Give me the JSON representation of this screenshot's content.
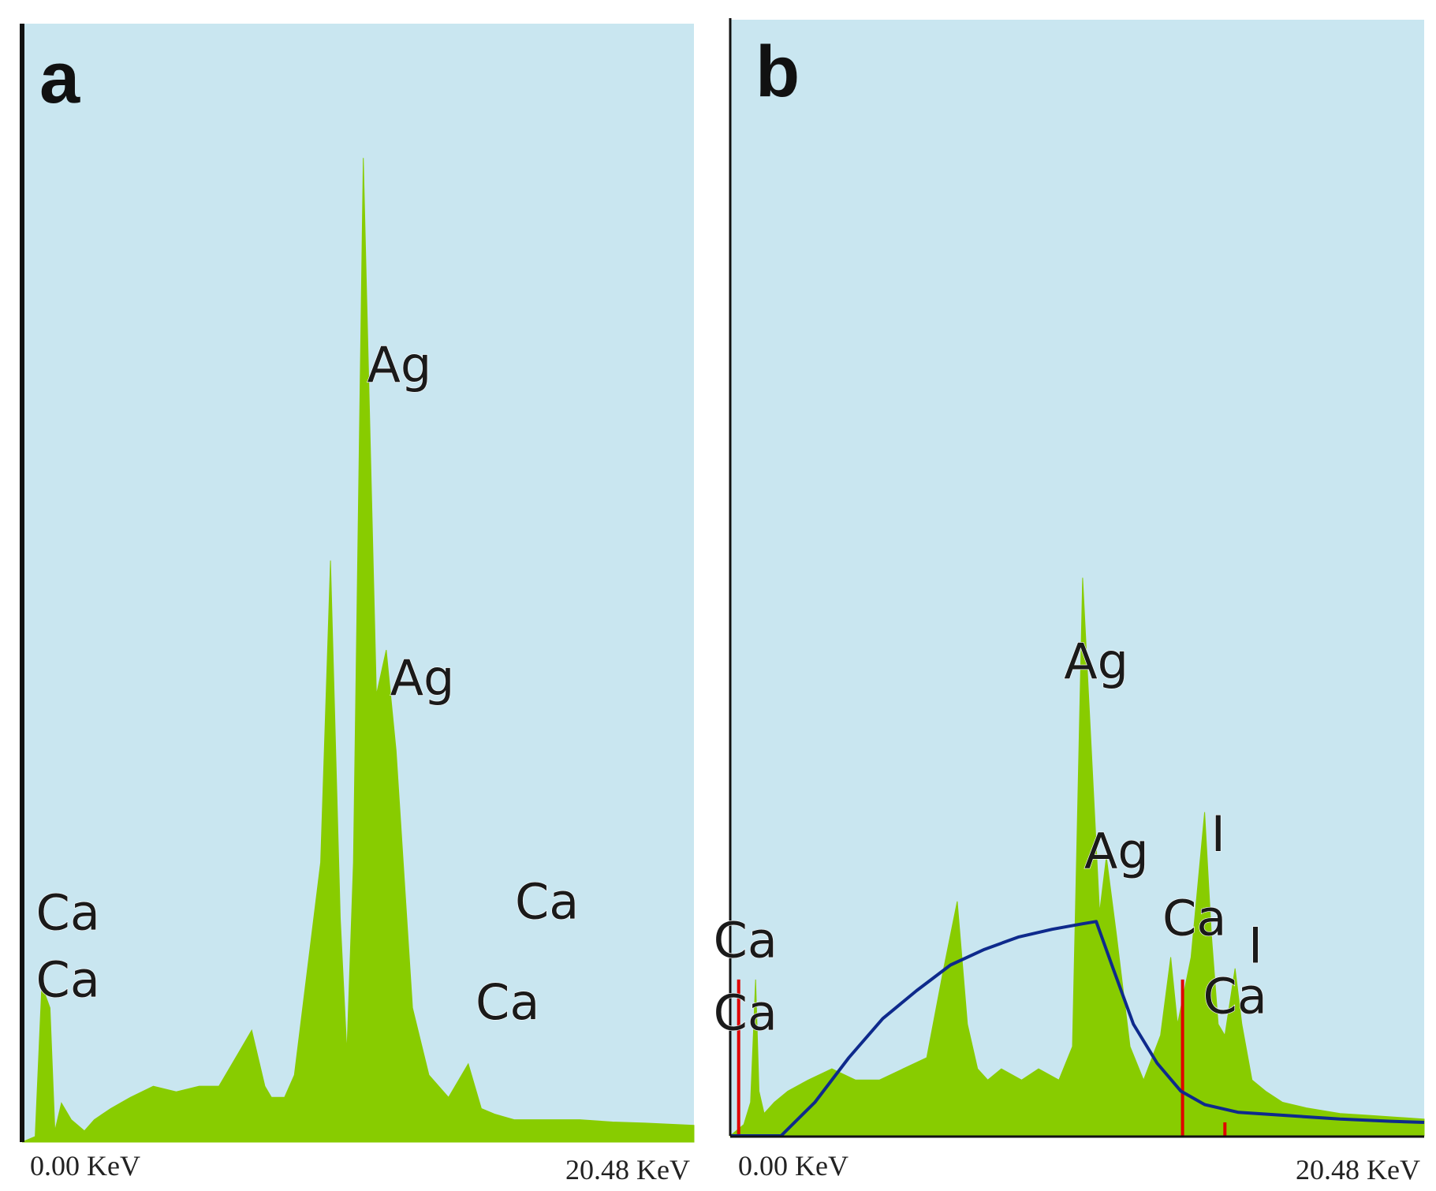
{
  "chart_data": [
    {
      "type": "area",
      "panel_label": "a",
      "x_unit": "KeV",
      "xlim": [
        0.0,
        20.48
      ],
      "ylim": [
        0,
        100
      ],
      "x_tick_labels": [
        "0.00 KeV",
        "20.48 KeV"
      ],
      "grid": false,
      "colors": {
        "background": "#c9e6f0",
        "fill": "#88cc00"
      },
      "x": [
        0.0,
        0.4,
        0.6,
        0.85,
        1.0,
        1.2,
        1.5,
        1.9,
        2.2,
        2.7,
        3.3,
        4.0,
        4.7,
        5.4,
        6.0,
        6.6,
        7.0,
        7.4,
        7.6,
        7.8,
        8.0,
        8.3,
        9.1,
        9.4,
        9.7,
        9.9,
        10.1,
        10.4,
        10.8,
        11.1,
        11.4,
        11.9,
        12.4,
        13.0,
        13.6,
        14.0,
        14.4,
        15.0,
        16.0,
        17.0,
        18.0,
        19.0,
        20.48
      ],
      "values": [
        0,
        0.5,
        14,
        12,
        1,
        3.5,
        2,
        1,
        2,
        3,
        4,
        5,
        4.5,
        5,
        5,
        8,
        10,
        5,
        4,
        4,
        4,
        6,
        25,
        52,
        20,
        8,
        25,
        88,
        40,
        44,
        35,
        12,
        6,
        4,
        7,
        3,
        2.5,
        2,
        2,
        2,
        1.8,
        1.7,
        1.5
      ],
      "annotations": [
        {
          "text": "Ag",
          "x": 11.5,
          "y": 68
        },
        {
          "text": "Ag",
          "x": 12.2,
          "y": 40
        },
        {
          "text": "Ca",
          "x": 1.4,
          "y": 19
        },
        {
          "text": "Ca",
          "x": 1.4,
          "y": 13
        },
        {
          "text": "Ca",
          "x": 16.0,
          "y": 20
        },
        {
          "text": "Ca",
          "x": 14.8,
          "y": 11
        }
      ]
    },
    {
      "type": "area",
      "panel_label": "b",
      "x_unit": "KeV",
      "xlim": [
        0.0,
        20.48
      ],
      "ylim": [
        0,
        100
      ],
      "x_tick_labels": [
        "0.00 KeV",
        "20.48 KeV"
      ],
      "grid": false,
      "colors": {
        "background": "#c9e6f0",
        "fill": "#88cc00",
        "curve": "#0e2a8c",
        "markers": "#e00000"
      },
      "x": [
        0.0,
        0.4,
        0.6,
        0.75,
        0.85,
        1.0,
        1.3,
        1.7,
        2.3,
        3.0,
        3.7,
        4.4,
        5.1,
        5.8,
        6.3,
        6.7,
        7.0,
        7.3,
        7.6,
        8.0,
        8.6,
        9.1,
        9.7,
        10.1,
        10.4,
        10.9,
        11.1,
        11.4,
        11.8,
        12.2,
        12.7,
        13.0,
        13.2,
        13.6,
        14.0,
        14.2,
        14.4,
        14.6,
        14.9,
        15.1,
        15.4,
        15.8,
        16.3,
        17.0,
        18.0,
        19.0,
        20.48
      ],
      "values": [
        0,
        1,
        3,
        14,
        4,
        2,
        3,
        4,
        5,
        6,
        5,
        5,
        6,
        7,
        15,
        21,
        10,
        6,
        5,
        6,
        5,
        6,
        5,
        8,
        50,
        20,
        25,
        18,
        8,
        5,
        9,
        16,
        10,
        16,
        29,
        18,
        10,
        9,
        15,
        10,
        5,
        4,
        3,
        2.5,
        2,
        1.8,
        1.5
      ],
      "background_curve": {
        "x": [
          0.0,
          1.5,
          2.5,
          3.5,
          4.5,
          5.5,
          6.5,
          7.5,
          8.5,
          9.5,
          10.4,
          10.8,
          11.3,
          11.9,
          12.6,
          13.3,
          14.0,
          15.0,
          16.5,
          18.0,
          19.5,
          20.48
        ],
        "values": [
          0,
          0,
          3,
          7,
          10.5,
          13,
          15.3,
          16.7,
          17.8,
          18.5,
          19.0,
          19.2,
          15,
          10,
          6.5,
          4,
          2.8,
          2.1,
          1.8,
          1.5,
          1.3,
          1.2
        ]
      },
      "marker_lines": [
        {
          "x": 0.25,
          "y": 14
        },
        {
          "x": 13.35,
          "y": 14
        },
        {
          "x": 14.6,
          "y": 1.2
        }
      ],
      "annotations": [
        {
          "text": "Ag",
          "x": 10.8,
          "y": 41
        },
        {
          "text": "Ag",
          "x": 11.4,
          "y": 24
        },
        {
          "text": "I",
          "x": 14.4,
          "y": 25.5
        },
        {
          "text": "I",
          "x": 15.5,
          "y": 15.5
        },
        {
          "text": "Ca",
          "x": 13.7,
          "y": 18
        },
        {
          "text": "Ca",
          "x": 14.9,
          "y": 11
        },
        {
          "text": "Ca",
          "x": 0.45,
          "y": 16
        },
        {
          "text": "Ca",
          "x": 0.45,
          "y": 9.5
        }
      ]
    }
  ]
}
